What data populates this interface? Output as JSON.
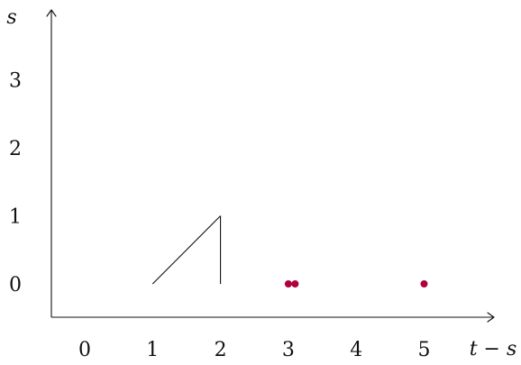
{
  "axes": {
    "x_title": "t − s",
    "y_title": "s",
    "x_ticks": [
      "0",
      "1",
      "2",
      "3",
      "4",
      "5"
    ],
    "y_ticks": [
      "0",
      "1",
      "2",
      "3"
    ]
  },
  "chart_data": {
    "type": "scatter",
    "xlabel": "t − s",
    "ylabel": "s",
    "x_tick_values": [
      0,
      1,
      2,
      3,
      4,
      5
    ],
    "y_tick_values": [
      0,
      1,
      2,
      3
    ],
    "segments": [
      {
        "from": [
          1,
          0
        ],
        "to": [
          2,
          1
        ]
      },
      {
        "from": [
          2,
          1
        ],
        "to": [
          2,
          0
        ]
      }
    ],
    "points": [
      {
        "x": 3,
        "y": 0
      },
      {
        "x": 3.1,
        "y": 0
      },
      {
        "x": 5,
        "y": 0
      }
    ],
    "point_color": "#b0003a",
    "line_color": "#111111",
    "grid": false
  }
}
